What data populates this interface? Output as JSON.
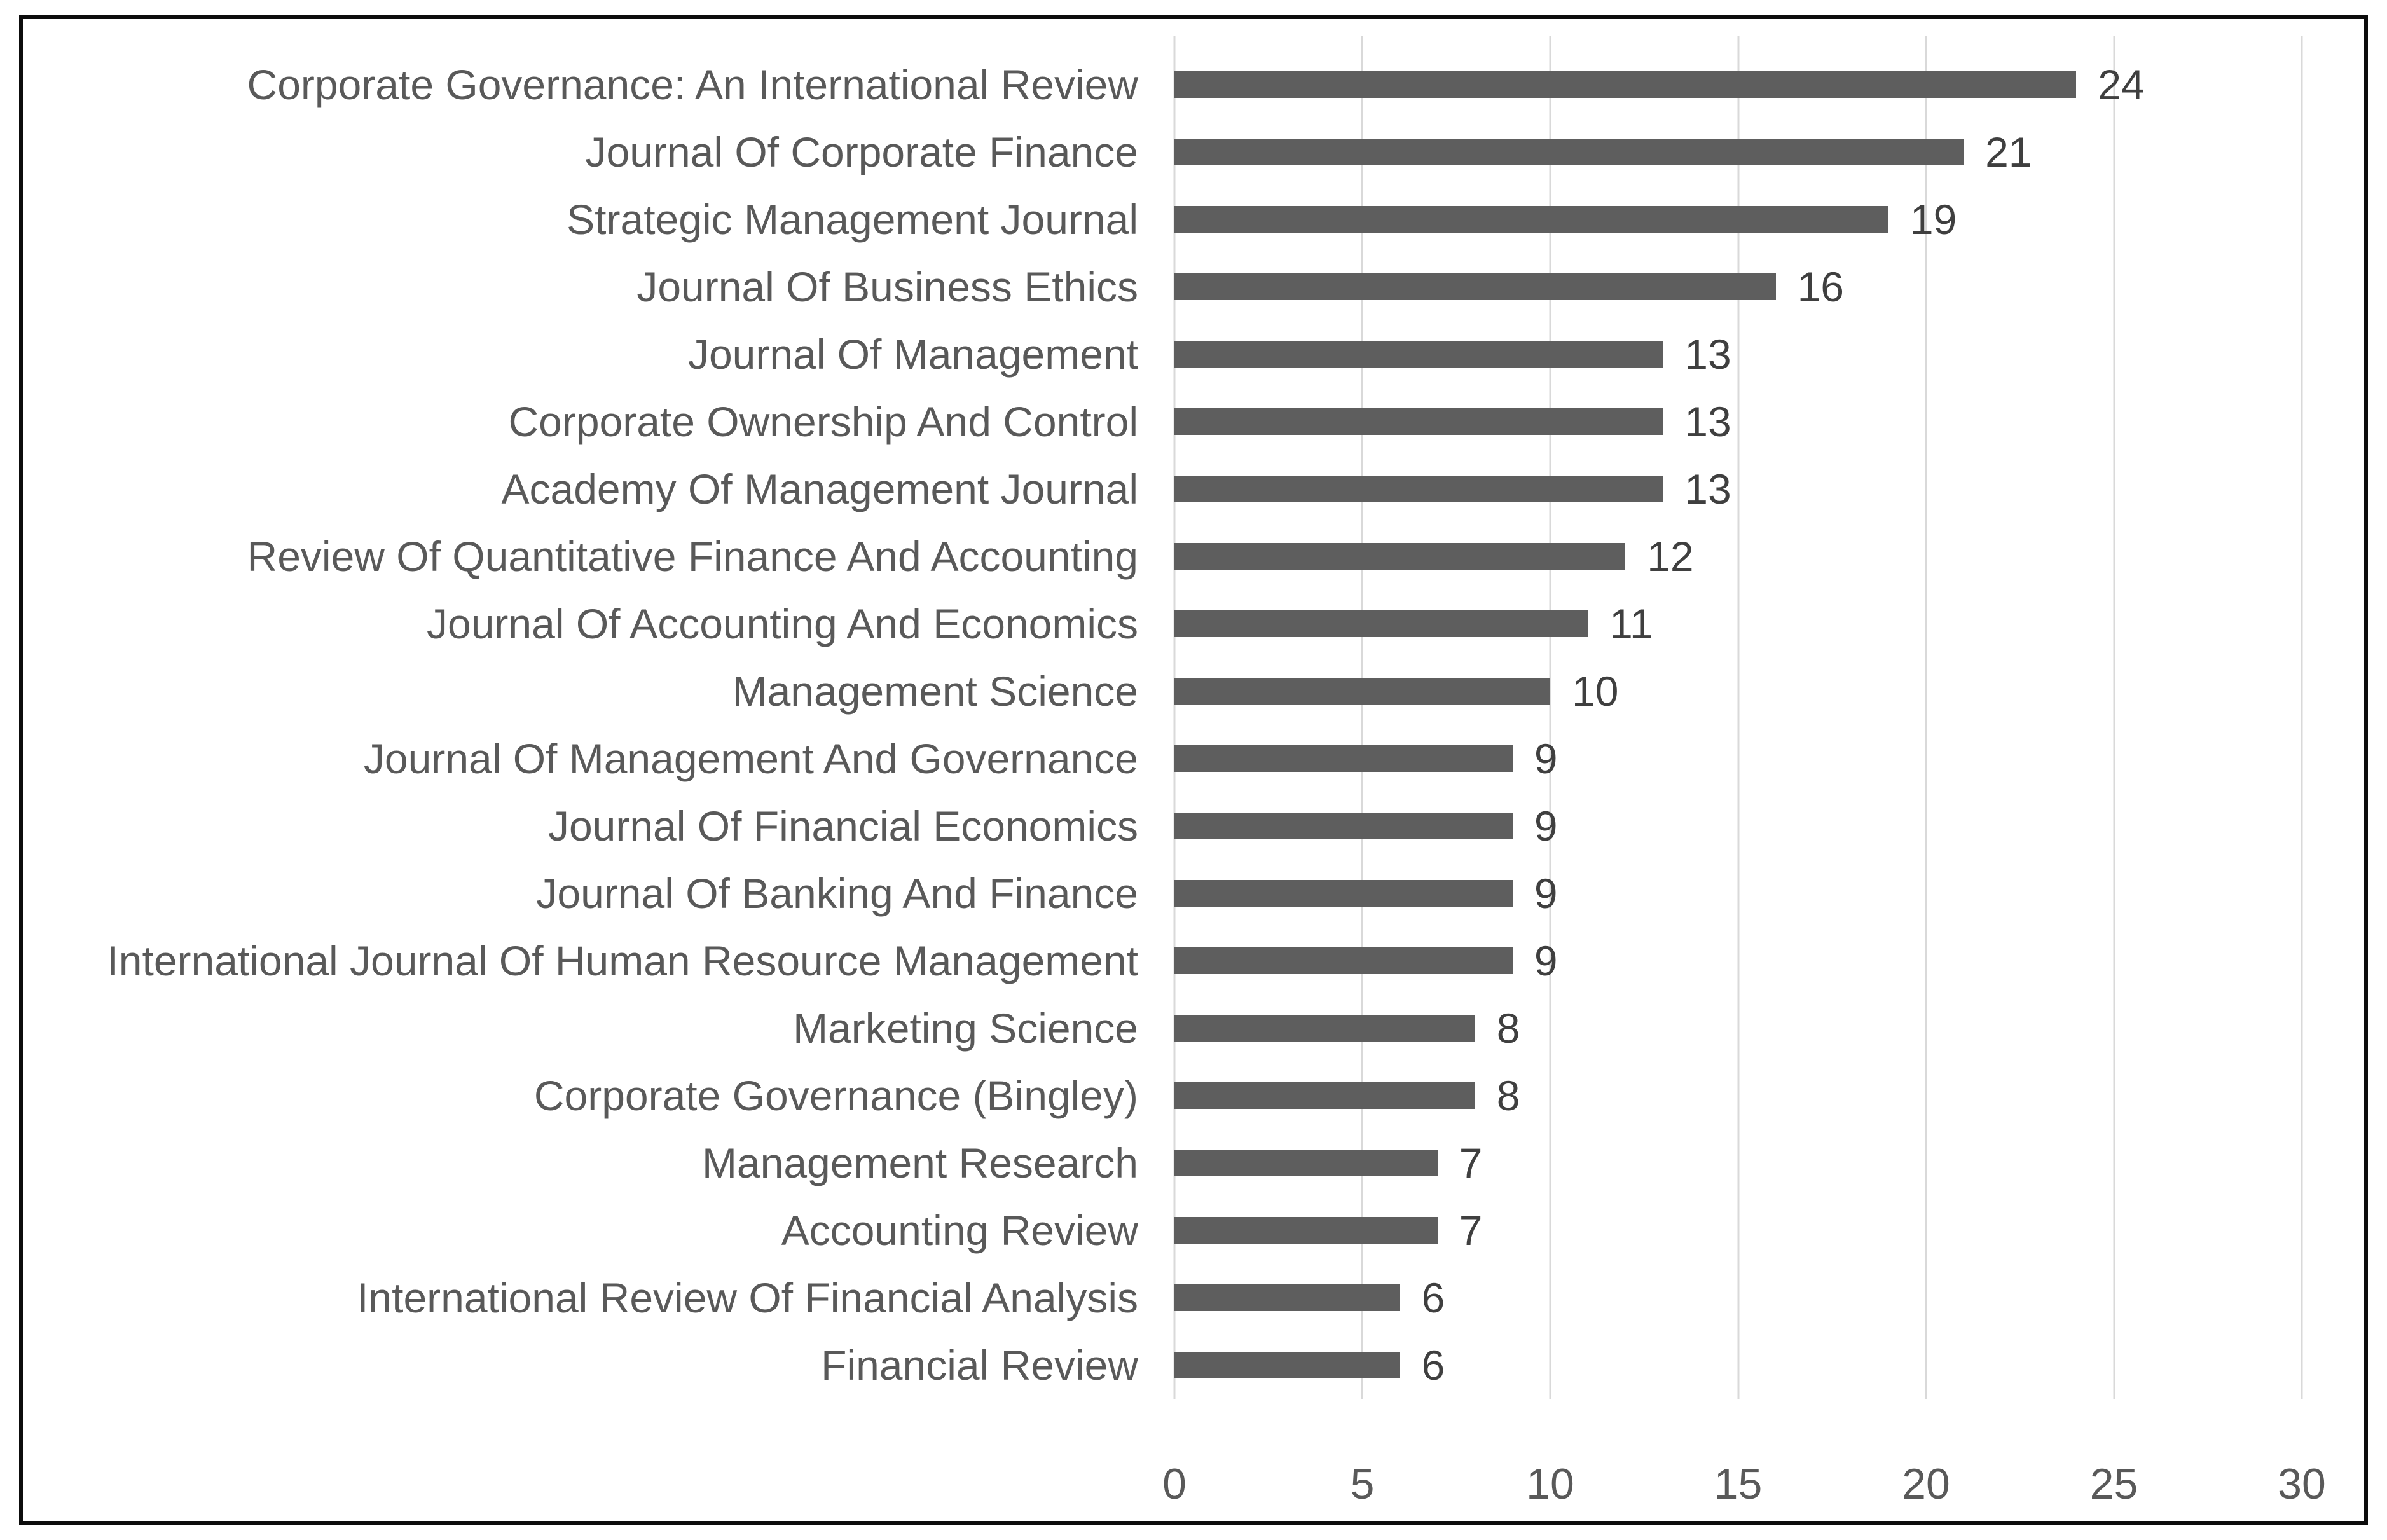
{
  "figure": {
    "title": "",
    "background_color": "#FFFFFF",
    "frame_border_color": "#0D0D0D"
  },
  "chart_data": {
    "type": "bar",
    "orientation": "horizontal",
    "title": "",
    "xlabel": "",
    "ylabel": "",
    "categories": [
      "Corporate Governance: An International Review",
      "Journal Of Corporate Finance",
      "Strategic Management Journal",
      "Journal Of Business Ethics",
      "Journal Of Management",
      "Corporate Ownership And Control",
      "Academy Of Management Journal",
      "Review Of Quantitative Finance And Accounting",
      "Journal Of Accounting And Economics",
      "Management Science",
      "Journal Of Management And Governance",
      "Journal Of Financial Economics",
      "Journal Of Banking And Finance",
      "International Journal Of Human Resource Management",
      "Marketing Science",
      "Corporate Governance (Bingley)",
      "Management Research",
      "Accounting Review",
      "International Review Of Financial Analysis",
      "Financial Review"
    ],
    "values": [
      24,
      21,
      19,
      16,
      13,
      13,
      13,
      12,
      11,
      10,
      9,
      9,
      9,
      9,
      8,
      8,
      7,
      7,
      6,
      6
    ],
    "xlim": [
      0,
      30
    ],
    "x_ticks": [
      "0",
      "5",
      "10",
      "15",
      "20",
      "25",
      "30"
    ],
    "grid": "vertical-major-only",
    "legend": "none",
    "data_labels": "outside-end",
    "colors": {
      "bar": "#5E5E5E",
      "gridline": "#D9D9D9",
      "category_label": "#595959",
      "value_label": "#3F3F3F",
      "tick_label": "#595959"
    }
  }
}
